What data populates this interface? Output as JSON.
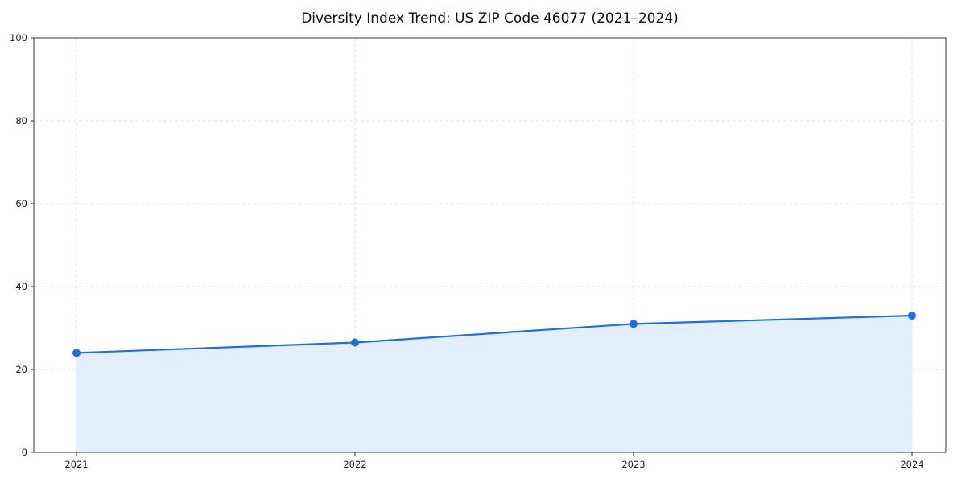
{
  "figure": {
    "title": "Diversity Index Trend: US ZIP Code 46077 (2021–2024)"
  },
  "chart_data": {
    "type": "line",
    "title": "Diversity Index Trend: US ZIP Code 46077 (2021–2024)",
    "x": [
      2021,
      2022,
      2023,
      2024
    ],
    "series": [
      {
        "name": "Diversity Index",
        "values": [
          24,
          26.5,
          31,
          33
        ]
      }
    ],
    "xlabel": "",
    "ylabel": "",
    "ylim": [
      0,
      100
    ],
    "yticks": [
      0,
      20,
      40,
      60,
      80,
      100
    ],
    "xticks": [
      2021,
      2022,
      2023,
      2024
    ],
    "grid": "dashed both axes",
    "legend": "none",
    "area_fill": true,
    "markers": "filled circles",
    "colors": {
      "line": "#1f6fe0",
      "marker": "#1f6fe0",
      "fill": "#e4eefc",
      "grid": "#e3e3e3",
      "spine": "#333333",
      "text": "#111111"
    }
  }
}
